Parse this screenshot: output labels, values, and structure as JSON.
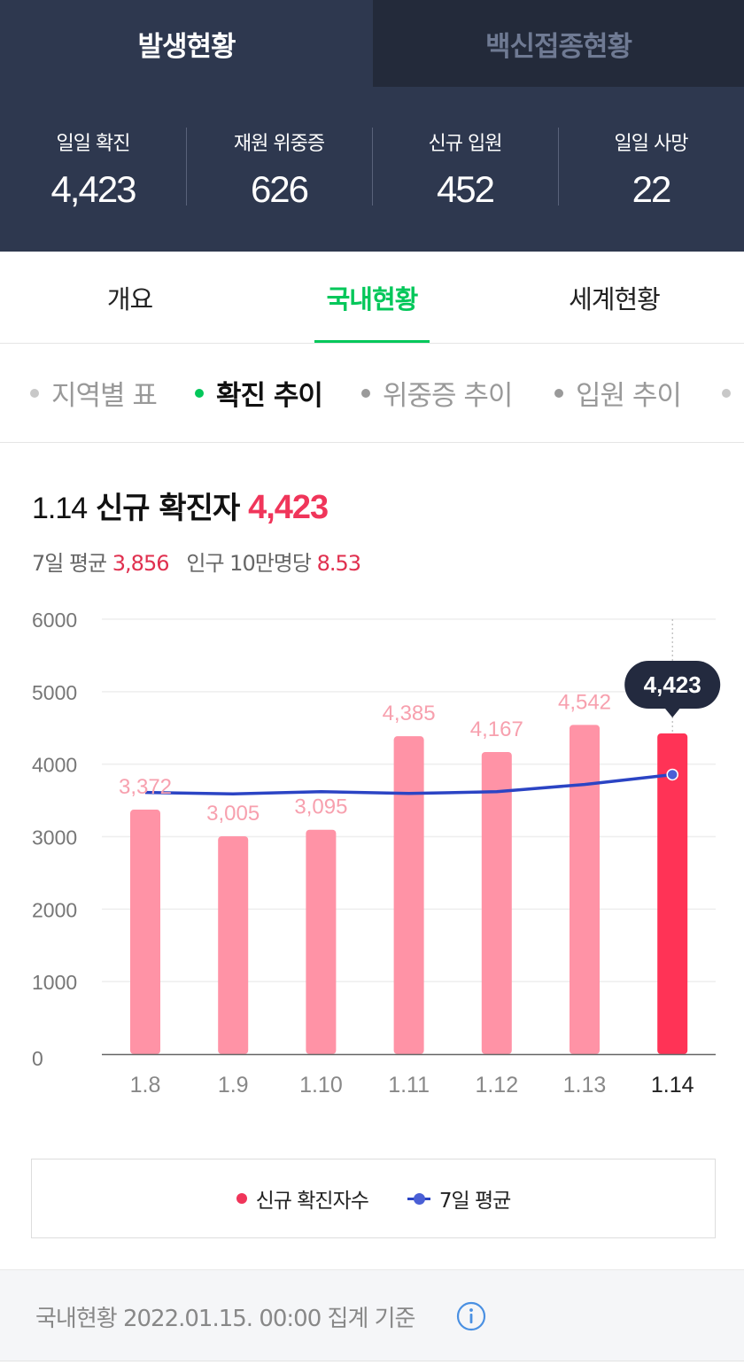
{
  "top_tabs": {
    "outbreak": "발생현황",
    "vaccine": "백신접종현황"
  },
  "stats": [
    {
      "label": "일일 확진",
      "value": "4,423"
    },
    {
      "label": "재원 위중증",
      "value": "626"
    },
    {
      "label": "신규 입원",
      "value": "452"
    },
    {
      "label": "일일 사망",
      "value": "22"
    }
  ],
  "main_tabs": {
    "overview": "개요",
    "domestic": "국내현황",
    "world": "세계현황",
    "selected": "domestic"
  },
  "sub_tabs": {
    "region_table": "지역별 표",
    "confirmed_trend": "확진 추이",
    "critical_trend": "위중증 추이",
    "hospital_trend": "입원 추이",
    "selected": "confirmed_trend"
  },
  "headline": {
    "date": "1.14",
    "title": "신규 확진자",
    "value": "4,423"
  },
  "subline": {
    "avg_label": "7일 평균",
    "avg_value": "3,856",
    "per_label": "인구 10만명당",
    "per_value": "8.53"
  },
  "colors": {
    "header_bg": "#2e384f",
    "accent_green": "#03c75a",
    "bar": "#ff93a6",
    "bar_highlight": "#ff3356",
    "avg_line": "#2b44c4",
    "value_red": "#f0355a"
  },
  "chart_data": {
    "type": "bar",
    "categories": [
      "1.8",
      "1.9",
      "1.10",
      "1.11",
      "1.12",
      "1.13",
      "1.14"
    ],
    "series": [
      {
        "name": "신규 확진자수",
        "values": [
          3372,
          3005,
          3095,
          4385,
          4167,
          4542,
          4423
        ]
      },
      {
        "name": "7일 평균",
        "type": "line",
        "values": [
          3610,
          3590,
          3620,
          3595,
          3620,
          3720,
          3856
        ]
      }
    ],
    "value_labels": [
      "3,372",
      "3,005",
      "3,095",
      "4,385",
      "4,167",
      "4,542",
      "4,423"
    ],
    "yticks": [
      0,
      1000,
      2000,
      3000,
      4000,
      5000,
      6000
    ],
    "ylim": [
      0,
      6000
    ],
    "highlight_index": 6,
    "tooltip": "4,423",
    "grid": true
  },
  "legend": {
    "confirmed": "신규 확진자수",
    "avg": "7일 평균"
  },
  "footer": {
    "text": "국내현황 2022.01.15. 00:00 집계 기준",
    "info_icon": "info-icon"
  }
}
